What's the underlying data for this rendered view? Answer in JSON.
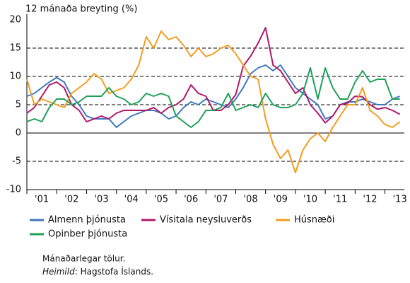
{
  "chart_data": {
    "type": "line",
    "y_label": "12 mánaða breyting (%)",
    "x": [
      2001,
      2001.25,
      2001.5,
      2001.75,
      2002,
      2002.25,
      2002.5,
      2002.75,
      2003,
      2003.25,
      2003.5,
      2003.75,
      2004,
      2004.25,
      2004.5,
      2004.75,
      2005,
      2005.25,
      2005.5,
      2005.75,
      2006,
      2006.25,
      2006.5,
      2006.75,
      2007,
      2007.25,
      2007.5,
      2007.75,
      2008,
      2008.25,
      2008.5,
      2008.75,
      2009,
      2009.25,
      2009.5,
      2009.75,
      2010,
      2010.25,
      2010.5,
      2010.75,
      2011,
      2011.25,
      2011.5,
      2011.75,
      2012,
      2012.25,
      2012.5,
      2012.75,
      2013,
      2013.25,
      2013.5
    ],
    "series": [
      {
        "name": "Almenn þjónusta",
        "color": "#3e78bd",
        "values": [
          6.5,
          7,
          8,
          9,
          9.8,
          9,
          6.5,
          5,
          3,
          2.5,
          2.5,
          2.5,
          1,
          2,
          3,
          3.5,
          4,
          4,
          3.5,
          2.5,
          3,
          4.5,
          5.5,
          5,
          6,
          5.5,
          5,
          4.5,
          6,
          8,
          10.5,
          11.5,
          12,
          11,
          12,
          10,
          8,
          7,
          6,
          5,
          2.5,
          3,
          5,
          5.5,
          5.5,
          6,
          5.5,
          5,
          5,
          6,
          6.5
        ]
      },
      {
        "name": "Vísitala neysluverðs",
        "color": "#b0176a",
        "values": [
          3.5,
          4.5,
          6.5,
          8.5,
          9,
          8,
          5,
          4,
          2,
          2.5,
          3,
          2.5,
          3.5,
          4,
          4,
          4,
          4,
          4.5,
          3.5,
          4.5,
          5,
          6,
          8.5,
          7,
          6.5,
          4,
          4,
          5,
          6.8,
          11.8,
          13.6,
          15.9,
          18.6,
          12,
          11,
          9,
          7,
          8,
          5,
          3.5,
          1.8,
          3,
          5,
          5.3,
          6.5,
          6.4,
          5,
          4.2,
          4.5,
          4,
          3.3
        ]
      },
      {
        "name": "Húsnæði",
        "color": "#f39c1e",
        "values": [
          9.5,
          5,
          6,
          5.5,
          5,
          4.5,
          7,
          8,
          9,
          10.5,
          9.5,
          7,
          7.5,
          8,
          9.5,
          12,
          17,
          15,
          18,
          16.5,
          17,
          15.5,
          13.5,
          15,
          13.5,
          14,
          15,
          15.5,
          14,
          12,
          10,
          9.5,
          2.5,
          -2,
          -4.5,
          -3,
          -7,
          -3,
          -1,
          0,
          -1.5,
          1,
          3,
          5,
          5,
          8,
          4,
          3,
          1.5,
          1,
          2
        ]
      },
      {
        "name": "Opinber þjónusta",
        "color": "#1ea05a",
        "values": [
          2,
          2.5,
          2,
          4.5,
          6,
          6,
          5,
          5.5,
          6.5,
          6.5,
          6.5,
          8,
          6.5,
          6,
          5,
          5.5,
          7,
          6.5,
          7,
          6.5,
          3,
          2,
          1,
          2,
          4,
          4,
          4.5,
          7,
          4,
          4.5,
          5,
          4.5,
          7,
          5,
          4.5,
          4.5,
          5,
          7,
          11.5,
          6,
          11.5,
          8,
          6,
          6,
          9,
          11,
          9,
          9.5,
          9.5,
          6,
          6
        ]
      }
    ],
    "xlim": [
      2001,
      2013.65
    ],
    "xticks": [
      {
        "value": 2001.5,
        "label": "'01"
      },
      {
        "value": 2002.5,
        "label": "'02"
      },
      {
        "value": 2003.5,
        "label": "'03"
      },
      {
        "value": 2004.5,
        "label": "'04"
      },
      {
        "value": 2005.5,
        "label": "'05"
      },
      {
        "value": 2006.5,
        "label": "'06"
      },
      {
        "value": 2007.5,
        "label": "'07"
      },
      {
        "value": 2008.5,
        "label": "'08"
      },
      {
        "value": 2009.5,
        "label": "'09"
      },
      {
        "value": 2010.5,
        "label": "'10"
      },
      {
        "value": 2011.5,
        "label": "'11"
      },
      {
        "value": 2012.5,
        "label": "'12"
      },
      {
        "value": 2013.5,
        "label": "'13"
      }
    ],
    "ylim": [
      -10,
      20
    ],
    "yticks": [
      20,
      15,
      10,
      5,
      0,
      -5,
      -10
    ],
    "grid": true,
    "note": "Mánaðarlegar tölur.",
    "source_label": "Heimild",
    "source_text": ": Hagstofa Íslands."
  }
}
